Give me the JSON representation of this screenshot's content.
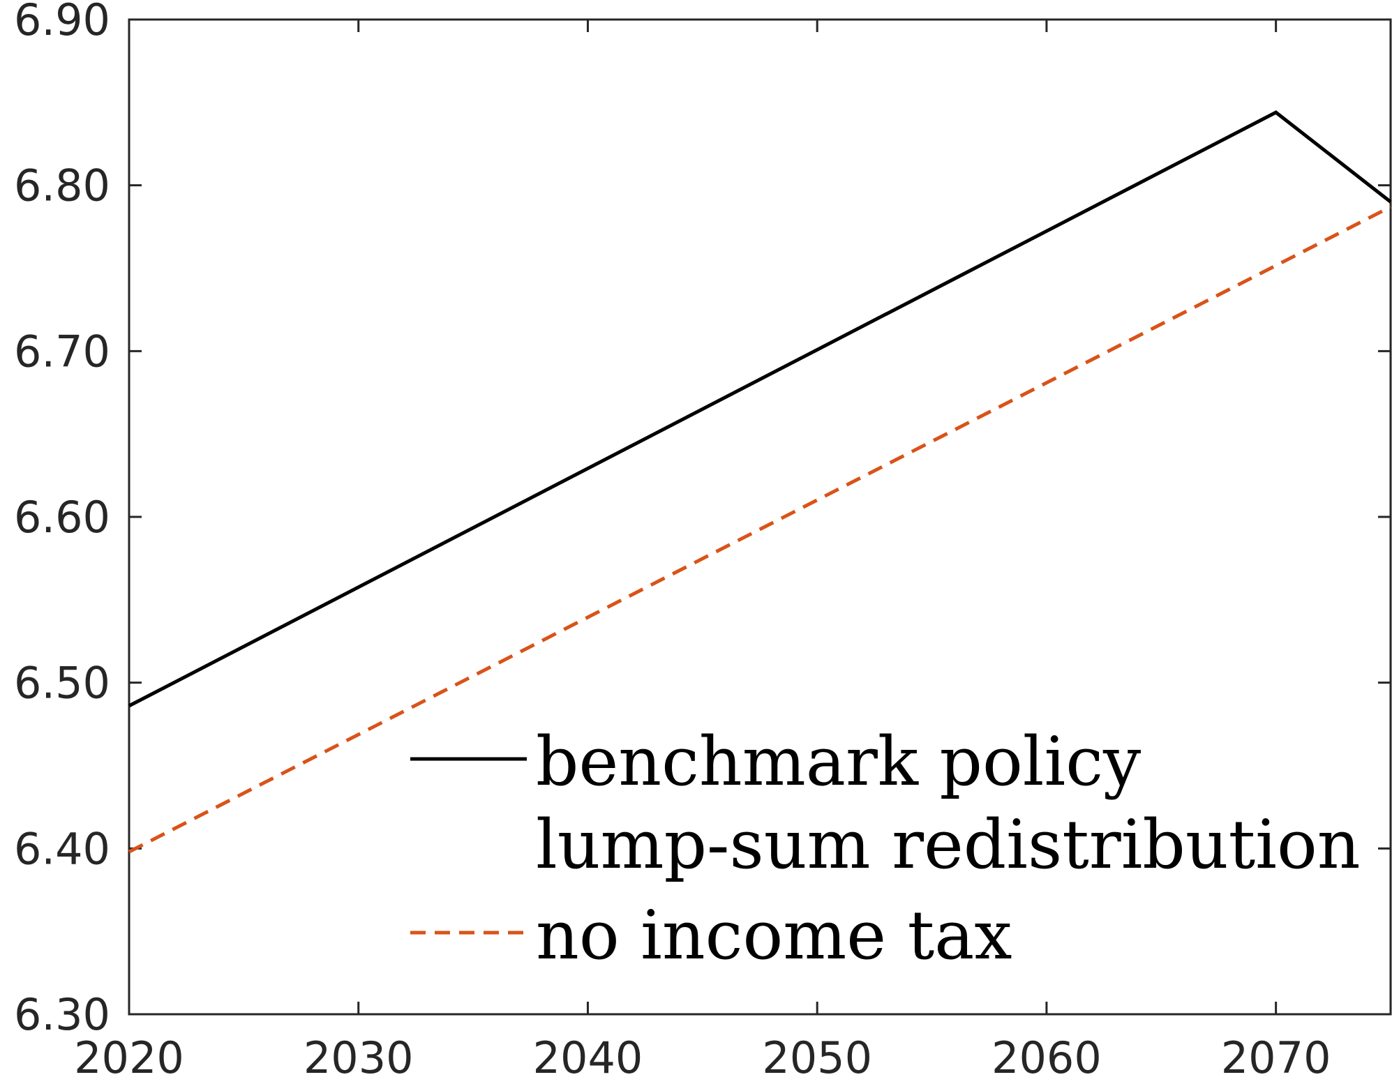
{
  "chart_data": {
    "type": "line",
    "title": "",
    "xlabel": "",
    "ylabel": "",
    "xlim": [
      2020,
      2075
    ],
    "ylim": [
      6.3,
      6.9
    ],
    "xticks": [
      "2020",
      "2030",
      "2040",
      "2050",
      "2060",
      "2070"
    ],
    "yticks": [
      "6.30",
      "6.40",
      "6.50",
      "6.60",
      "6.70",
      "6.80",
      "6.90"
    ],
    "grid": false,
    "legend_position": "bottom-right",
    "series": [
      {
        "name": "benchmark policy",
        "style": "solid",
        "color": "#000000",
        "x": [
          2020,
          2070,
          2075
        ],
        "y": [
          6.486,
          6.844,
          6.79
        ]
      },
      {
        "name": "lump-sum redistribution",
        "style": "none",
        "color": "#000000",
        "x": [],
        "y": []
      },
      {
        "name": "no income tax",
        "style": "dashed",
        "color": "#D95319",
        "x": [
          2020,
          2075
        ],
        "y": [
          6.398,
          6.787
        ]
      }
    ]
  }
}
